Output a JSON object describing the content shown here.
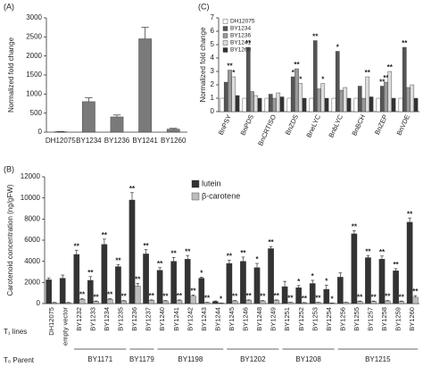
{
  "chart_data": [
    {
      "type": "bar",
      "panel": "(A)",
      "y_label": "Normalized fold change",
      "categories": [
        "DH12075",
        "BY1234",
        "BY1236",
        "BY1241",
        "BY1260"
      ],
      "values": [
        10,
        800,
        400,
        2450,
        80
      ],
      "errors": [
        5,
        100,
        50,
        300,
        20
      ],
      "color": "#7a7a7a",
      "ylim": [
        0,
        3000
      ],
      "yticks": [
        0,
        500,
        1000,
        1500,
        2000,
        2500,
        3000
      ]
    },
    {
      "type": "bar",
      "panel": "(B)",
      "y_label": "Carotenoid concentration (ng/gFW)",
      "categories": [
        "DH12075",
        "empty vector",
        "BY1232",
        "BY1233",
        "BY1234",
        "BY1235",
        "BY1236",
        "BY1237",
        "BY1240",
        "BY1241",
        "BY1242",
        "BY1243",
        "BY1244",
        "BY1245",
        "BY1246",
        "BY1248",
        "BY1249",
        "BY1251",
        "BY1252",
        "BY1253",
        "BY1254",
        "BY1256",
        "BY1255",
        "BY1257",
        "BY1258",
        "BY1259",
        "BY1260"
      ],
      "series": [
        {
          "name": "lutein",
          "color": "#333333",
          "values": [
            2250,
            2400,
            4650,
            2200,
            5600,
            3500,
            9800,
            4700,
            3150,
            4000,
            4200,
            2400,
            200,
            3800,
            4000,
            3400,
            5200,
            1600,
            1500,
            1900,
            1350,
            2500,
            6600,
            4350,
            4200,
            3100,
            7700
          ],
          "errors": [
            150,
            300,
            400,
            350,
            500,
            200,
            700,
            400,
            250,
            350,
            350,
            100,
            50,
            300,
            400,
            400,
            200,
            500,
            200,
            300,
            400,
            400,
            300,
            200,
            300,
            200,
            400
          ],
          "annotations": [
            null,
            null,
            "**",
            "**",
            "**",
            "**",
            "**",
            "**",
            "**",
            "**",
            "**",
            "*",
            null,
            "**",
            "**",
            "*",
            "**",
            null,
            "*",
            "*",
            "*",
            null,
            "**",
            "**",
            "**",
            "**",
            "**"
          ]
        },
        {
          "name": "β-carotene",
          "color": "#bdbdbd",
          "values": [
            80,
            80,
            400,
            200,
            400,
            250,
            1650,
            300,
            250,
            300,
            700,
            100,
            50,
            250,
            300,
            250,
            300,
            100,
            80,
            100,
            50,
            100,
            200,
            200,
            250,
            200,
            600
          ],
          "errors": [
            30,
            30,
            60,
            40,
            60,
            40,
            250,
            50,
            40,
            50,
            100,
            20,
            10,
            40,
            50,
            40,
            50,
            20,
            20,
            20,
            10,
            20,
            40,
            40,
            40,
            40,
            150
          ],
          "annotations": [
            null,
            null,
            "**",
            "**",
            "**",
            "**",
            "**",
            "**",
            "**",
            "**",
            "**",
            "**",
            "*",
            "**",
            "**",
            "**",
            "**",
            "**",
            "**",
            "**",
            "*",
            null,
            "**",
            "**",
            "**",
            "**",
            "**"
          ]
        }
      ],
      "ylim": [
        0,
        12000
      ],
      "yticks": [
        0,
        2000,
        4000,
        6000,
        8000,
        10000,
        12000
      ],
      "row_labels": [
        "T₁ lines",
        "T₀ Parent"
      ],
      "parents": [
        {
          "name": "BY1171",
          "lines": [
            "BY1232",
            "BY1233",
            "BY1234",
            "BY1235"
          ]
        },
        {
          "name": "BY1179",
          "lines": [
            "BY1236",
            "BY1237"
          ]
        },
        {
          "name": "BY1198",
          "lines": [
            "BY1240",
            "BY1241",
            "BY1242",
            "BY1243",
            "BY1244"
          ]
        },
        {
          "name": "BY1202",
          "lines": [
            "BY1245",
            "BY1246",
            "BY1248",
            "BY1249"
          ]
        },
        {
          "name": "BY1208",
          "lines": [
            "BY1251",
            "BY1252",
            "BY1253",
            "BY1254"
          ]
        },
        {
          "name": "BY1215",
          "lines": [
            "BY1256",
            "BY1255",
            "BY1257",
            "BY1258",
            "BY1259",
            "BY1260"
          ]
        }
      ]
    },
    {
      "type": "bar",
      "panel": "(C)",
      "y_label": "Normalized fold change",
      "categories": [
        "BnPSY",
        "BnPDS",
        "BnCRTISO",
        "BnZDS",
        "BneLYC",
        "BnbLYC",
        "BnBCH",
        "BnZEP",
        "BnVDE"
      ],
      "series": [
        {
          "name": "DH12075",
          "color": "#ffffff",
          "values": [
            1,
            1,
            1,
            1,
            1,
            1,
            1,
            1,
            1
          ]
        },
        {
          "name": "BY1234",
          "color": "#555555",
          "values": [
            2.2,
            4.8,
            1.3,
            2.6,
            5.3,
            4.5,
            1.9,
            1.9,
            4.8
          ],
          "annotations": [
            null,
            "**",
            null,
            "*",
            "**",
            "*",
            null,
            "**",
            "**"
          ]
        },
        {
          "name": "BY1236",
          "color": "#999999",
          "values": [
            3.1,
            1.5,
            1.0,
            3.2,
            1.7,
            1.6,
            1.0,
            2.2,
            1.8
          ],
          "annotations": [
            "**",
            null,
            null,
            "**",
            null,
            null,
            null,
            "**",
            null
          ]
        },
        {
          "name": "BY1241",
          "color": "#dddddd",
          "values": [
            2.6,
            1.2,
            1.4,
            2.1,
            2.1,
            1.8,
            2.6,
            3.0,
            2.0
          ],
          "annotations": [
            "*",
            null,
            null,
            "*",
            "*",
            null,
            "**",
            "**",
            null
          ]
        },
        {
          "name": "BY1260",
          "color": "#333333",
          "values": [
            1.2,
            1.0,
            1.1,
            1.0,
            1.0,
            1.0,
            1.1,
            1.0,
            1.0
          ]
        }
      ],
      "ylim": [
        0,
        7
      ],
      "yticks": [
        0,
        1,
        2,
        3,
        4,
        5,
        6,
        7
      ]
    }
  ]
}
